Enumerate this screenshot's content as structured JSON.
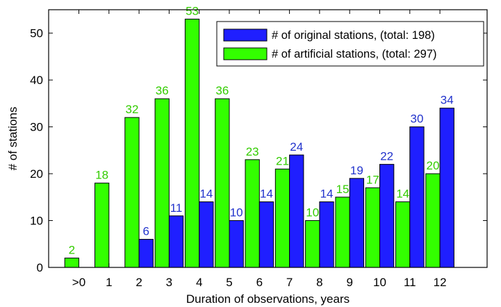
{
  "chart_data": {
    "type": "bar",
    "categories": [
      ">0",
      "1",
      "2",
      "3",
      "4",
      "5",
      "6",
      "7",
      "8",
      "9",
      "10",
      "11",
      "12"
    ],
    "series": [
      {
        "name": "# of artificial stations, (total: 297)",
        "color": "#33ff00",
        "label_color": "#33cc00",
        "values": [
          2,
          18,
          32,
          36,
          53,
          36,
          23,
          21,
          10,
          15,
          17,
          14,
          20
        ]
      },
      {
        "name": "# of original stations, (total: 198)",
        "color": "#1f1fff",
        "label_color": "#2233cc",
        "values": [
          0,
          0,
          6,
          11,
          14,
          10,
          14,
          24,
          14,
          19,
          22,
          30,
          34
        ]
      }
    ],
    "legend_order": [
      1,
      0
    ],
    "title": "",
    "xlabel": "Duration of observations, years",
    "ylabel": "# of stations",
    "ylim": [
      0,
      55
    ],
    "yticks": [
      0,
      10,
      20,
      30,
      40,
      50
    ],
    "grid": false,
    "legend_position": "top-right"
  }
}
